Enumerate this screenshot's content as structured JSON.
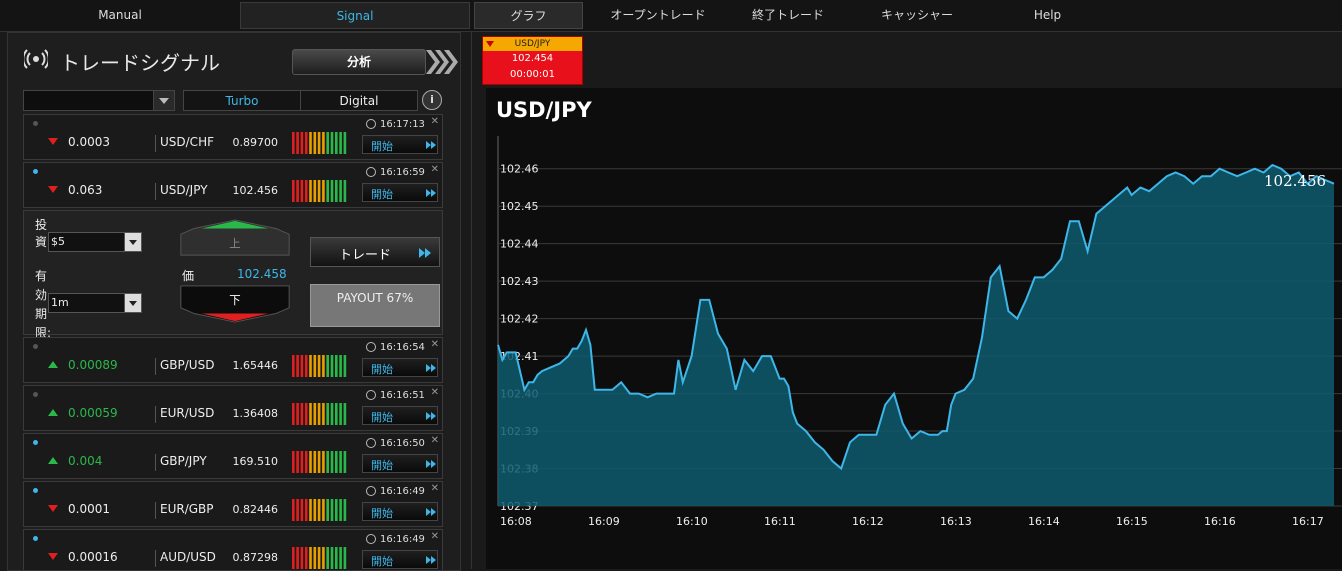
{
  "nav": {
    "manual": "Manual",
    "signal": "Signal",
    "graph": "グラフ",
    "open_trades": "オープントレード",
    "closed_trades": "終了トレード",
    "cashier": "キャッシャー",
    "help": "Help"
  },
  "panel": {
    "title": "トレードシグナル",
    "analyze_label": "分析",
    "filter_tabs": [
      "Turbo",
      "Digital"
    ],
    "info": "i"
  },
  "colors": {
    "accent": "#3fb6e8",
    "up": "#2ab84a",
    "down": "#e02020",
    "area": "#0e5a6e"
  },
  "signals": [
    {
      "dot": "gray",
      "time": "16:17:13",
      "direction": "down",
      "change": "0.0003",
      "pair": "USD/CHF",
      "price": "0.89700",
      "button": "開始"
    },
    {
      "dot": "blue",
      "time": "16:16:59",
      "direction": "down",
      "change": "0.063",
      "pair": "USD/JPY",
      "price": "102.456",
      "button": "開始"
    }
  ],
  "trade_form": {
    "invest_label": "投資:",
    "invest_value": "$5",
    "expiry_label": "有効期限:",
    "expiry_value": "1m",
    "up_label": "上",
    "down_label": "下",
    "price_label": "価",
    "price_value": "102.458",
    "trade_button": "トレード",
    "payout": "PAYOUT 67%"
  },
  "signals_after": [
    {
      "dot": "gray",
      "time": "16:16:54",
      "direction": "up",
      "change": "0.00089",
      "pair": "GBP/USD",
      "price": "1.65446",
      "button": "開始"
    },
    {
      "dot": "gray",
      "time": "16:16:51",
      "direction": "up",
      "change": "0.00059",
      "pair": "EUR/USD",
      "price": "1.36408",
      "button": "開始"
    },
    {
      "dot": "blue",
      "time": "16:16:50",
      "direction": "up",
      "change": "0.004",
      "pair": "GBP/JPY",
      "price": "169.510",
      "button": "開始"
    },
    {
      "dot": "blue",
      "time": "16:16:49",
      "direction": "down",
      "change": "0.0001",
      "pair": "EUR/GBP",
      "price": "0.82446",
      "button": "開始"
    },
    {
      "dot": "blue",
      "time": "16:16:49",
      "direction": "down",
      "change": "0.00016",
      "pair": "AUD/USD",
      "price": "0.87298",
      "button": "開始"
    }
  ],
  "mini_tab": {
    "pair": "USD/JPY",
    "price": "102.454",
    "timer": "00:00:01"
  },
  "chart_data": {
    "type": "area",
    "title": "USD/JPY",
    "ylim": [
      102.37,
      102.465
    ],
    "y_ticks": [
      "102.46",
      "102.45",
      "102.44",
      "102.43",
      "102.42",
      "102.41",
      "102.40",
      "102.39",
      "102.38",
      "102.37"
    ],
    "x_ticks": [
      "16:08",
      "16:09",
      "16:10",
      "16:11",
      "16:12",
      "16:13",
      "16:14",
      "16:15",
      "16:16",
      "16:17"
    ],
    "last_value_label": "102.456",
    "series": [
      {
        "x": [
          0,
          0.05,
          0.1,
          0.2,
          0.3,
          0.35,
          0.4,
          0.45,
          0.5,
          0.6,
          0.7,
          0.8,
          0.85,
          0.9,
          0.95,
          1.0,
          1.05,
          1.1,
          1.15,
          1.2,
          1.3,
          1.4,
          1.5,
          1.6,
          1.7,
          1.8,
          1.9,
          2.0,
          2.05,
          2.1,
          2.2,
          2.3,
          2.4,
          2.5,
          2.6,
          2.7,
          2.8,
          2.9,
          3.0,
          3.1,
          3.15,
          3.2,
          3.25,
          3.3,
          3.35,
          3.4,
          3.5,
          3.6,
          3.7,
          3.8,
          3.9,
          4.0,
          4.1,
          4.2,
          4.3,
          4.4,
          4.5,
          4.6,
          4.7,
          4.8,
          4.9,
          5.0,
          5.05,
          5.1,
          5.15,
          5.2,
          5.3,
          5.4,
          5.5,
          5.6,
          5.7,
          5.8,
          5.9,
          6.0,
          6.1,
          6.2,
          6.3,
          6.4,
          6.5,
          6.6,
          6.7,
          6.8,
          6.9,
          7.0,
          7.1,
          7.15,
          7.2,
          7.3,
          7.4,
          7.5,
          7.6,
          7.7,
          7.8,
          7.9,
          8.0,
          8.1,
          8.2,
          8.3,
          8.4,
          8.5,
          8.6,
          8.7,
          8.8,
          8.9,
          9.0,
          9.1,
          9.2,
          9.3,
          9.4,
          9.5
        ],
        "values": [
          102.413,
          102.409,
          102.411,
          102.411,
          102.401,
          102.403,
          102.403,
          102.405,
          102.406,
          102.407,
          102.408,
          102.41,
          102.412,
          102.412,
          102.414,
          102.417,
          102.413,
          102.401,
          102.401,
          102.401,
          102.401,
          102.403,
          102.4,
          102.4,
          102.399,
          102.4,
          102.4,
          102.4,
          102.409,
          102.403,
          102.41,
          102.425,
          102.425,
          102.416,
          102.412,
          102.401,
          102.409,
          102.406,
          102.41,
          102.41,
          102.407,
          102.404,
          102.404,
          102.402,
          102.395,
          102.392,
          102.39,
          102.387,
          102.385,
          102.382,
          102.38,
          102.387,
          102.389,
          102.389,
          102.389,
          102.397,
          102.4,
          102.392,
          102.388,
          102.39,
          102.389,
          102.389,
          102.39,
          102.39,
          102.397,
          102.4,
          102.401,
          102.404,
          102.415,
          102.431,
          102.434,
          102.422,
          102.42,
          102.425,
          102.431,
          102.431,
          102.433,
          102.436,
          102.446,
          102.446,
          102.438,
          102.448,
          102.45,
          102.452,
          102.454,
          102.455,
          102.453,
          102.455,
          102.454,
          102.456,
          102.458,
          102.459,
          102.458,
          102.456,
          102.458,
          102.458,
          102.46,
          102.459,
          102.458,
          102.459,
          102.46,
          102.459,
          102.461,
          102.46,
          102.458,
          102.459,
          102.456,
          102.458,
          102.457,
          102.456
        ]
      }
    ]
  }
}
